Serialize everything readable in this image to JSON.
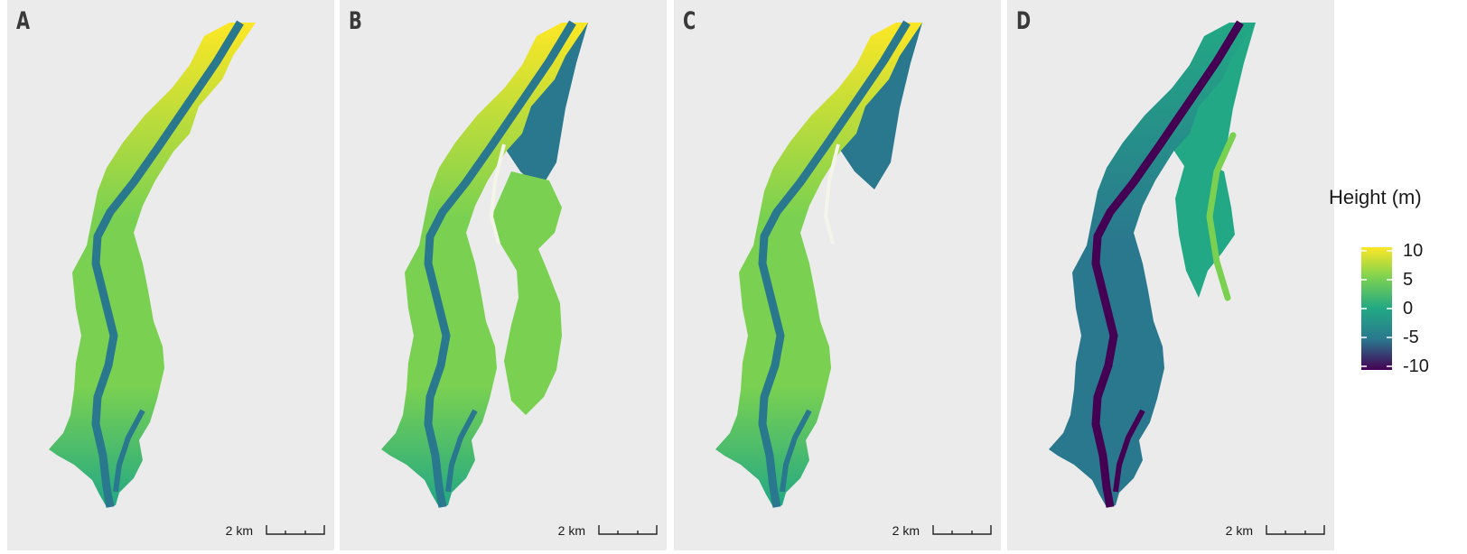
{
  "panels": [
    {
      "label": "A",
      "scale_label": "2 km",
      "variant": "a"
    },
    {
      "label": "B",
      "scale_label": "2 km",
      "variant": "b"
    },
    {
      "label": "C",
      "scale_label": "2 km",
      "variant": "c"
    },
    {
      "label": "D",
      "scale_label": "2 km",
      "variant": "d"
    }
  ],
  "legend": {
    "title": "Height (m)",
    "ticks": [
      "10",
      "5",
      "0",
      "-5",
      "-10"
    ],
    "colors": {
      "high": "#fde725",
      "upper": "#7ad151",
      "mid": "#22a884",
      "lower": "#2a788e",
      "low": "#440154"
    }
  }
}
